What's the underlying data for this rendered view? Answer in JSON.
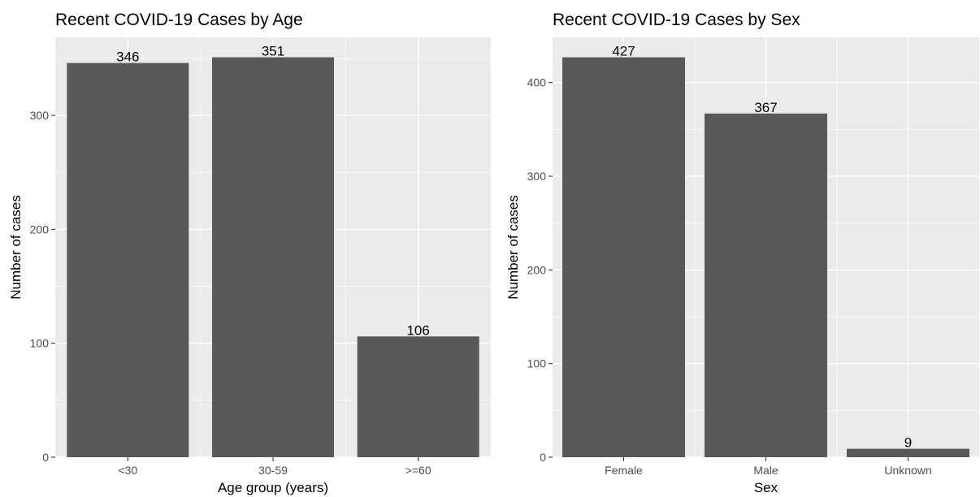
{
  "colors": {
    "panel_background": "#ebebeb",
    "major_grid": "#ffffff",
    "bar_fill": "#595959",
    "tick_text": "#4d4d4d",
    "text": "#000000"
  },
  "chart_data": [
    {
      "type": "bar",
      "title": "Recent COVID-19 Cases by Age",
      "xlabel": "Age group (years)",
      "ylabel": "Number of cases",
      "categories": [
        "<30",
        "30-59",
        ">=60"
      ],
      "values": [
        346,
        351,
        106
      ],
      "data_labels": [
        "346",
        "351",
        "106"
      ],
      "yticks": [
        0,
        100,
        200,
        300
      ],
      "ylim": [
        0,
        368.5
      ],
      "grid": true,
      "legend": "none"
    },
    {
      "type": "bar",
      "title": "Recent COVID-19 Cases by Sex",
      "xlabel": "Sex",
      "ylabel": "Number of cases",
      "categories": [
        "Female",
        "Male",
        "Unknown"
      ],
      "values": [
        427,
        367,
        9
      ],
      "data_labels": [
        "427",
        "367",
        "9"
      ],
      "yticks": [
        0,
        100,
        200,
        300,
        400
      ],
      "ylim": [
        0,
        448.3
      ],
      "grid": true,
      "legend": "none"
    }
  ]
}
